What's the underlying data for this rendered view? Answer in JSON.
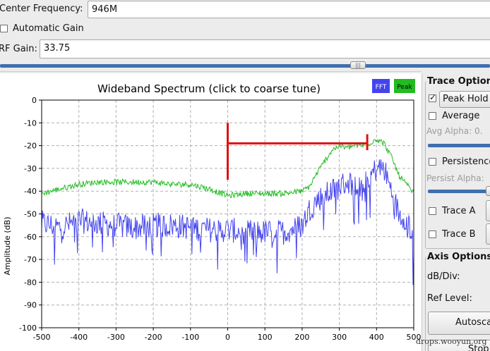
{
  "controls": {
    "center_frequency": {
      "label": "Center Frequency:",
      "value": "946M"
    },
    "automatic_gain": {
      "label": "Automatic Gain",
      "checked": false
    },
    "rf_gain": {
      "label": "RF Gain:",
      "value": "33.75"
    },
    "gain_slider_value": 0.73
  },
  "chart_data": {
    "type": "line",
    "title": "Wideband Spectrum (click to coarse tune)",
    "ylabel": "Amplitude (dB)",
    "xlabel": "",
    "xlim": [
      -500,
      500
    ],
    "ylim": [
      -100,
      0
    ],
    "xticks": [
      -500,
      -400,
      -300,
      -200,
      -100,
      0,
      100,
      200,
      300,
      400,
      500
    ],
    "yticks": [
      0,
      -10,
      -20,
      -30,
      -40,
      -50,
      -60,
      -70,
      -80,
      -90,
      -100
    ],
    "grid": true,
    "legend_position": "top-right",
    "series": [
      {
        "name": "FFT",
        "color": "#4444ee",
        "noise": 7,
        "x": [
          -500,
          -450,
          -400,
          -350,
          -300,
          -250,
          -200,
          -150,
          -100,
          -50,
          0,
          50,
          100,
          150,
          200,
          220,
          240,
          260,
          280,
          300,
          320,
          340,
          360,
          380,
          400,
          420,
          440,
          460,
          480,
          500
        ],
        "y": [
          -54,
          -56,
          -53,
          -54,
          -55,
          -56,
          -55,
          -55,
          -56,
          -57,
          -57,
          -58,
          -58,
          -58,
          -55,
          -48,
          -44,
          -42,
          -40,
          -38,
          -36,
          -37,
          -36,
          -34,
          -30,
          -30,
          -40,
          -50,
          -52,
          -60
        ]
      },
      {
        "name": "Peak",
        "color": "#22bb22",
        "noise": 1.3,
        "x": [
          -500,
          -450,
          -400,
          -350,
          -300,
          -250,
          -200,
          -150,
          -100,
          -50,
          0,
          50,
          100,
          150,
          200,
          220,
          240,
          260,
          280,
          300,
          320,
          340,
          360,
          380,
          400,
          420,
          440,
          460,
          480,
          500
        ],
        "y": [
          -41,
          -39,
          -37,
          -36,
          -36,
          -36,
          -36,
          -37,
          -37,
          -39,
          -42,
          -41,
          -41,
          -41,
          -40,
          -38,
          -32,
          -27,
          -22,
          -20,
          -21,
          -20,
          -20,
          -19,
          -17,
          -19,
          -25,
          -33,
          -37,
          -41
        ]
      }
    ],
    "annotations": [
      {
        "type": "marker",
        "color": "#dd1111",
        "x_start": 0,
        "x_end": 375,
        "y": -19,
        "left_bar": [
          -10,
          -35
        ],
        "right_bar": [
          -15,
          -22
        ]
      }
    ],
    "legend": {
      "fft": "FFT",
      "peak": "Peak"
    }
  },
  "trace_options": {
    "title": "Trace Options",
    "peak_hold": {
      "label": "Peak Hold",
      "checked": true
    },
    "average": {
      "label": "Average",
      "checked": false
    },
    "avg_alpha_label": "Avg Alpha: 0.",
    "persistence": {
      "label": "Persistence",
      "checked": false
    },
    "persist_alpha_label": "Persist Alpha:",
    "trace_a": {
      "label": "Trace A",
      "checked": false
    },
    "trace_b": {
      "label": "Trace B",
      "checked": false
    }
  },
  "axis_options": {
    "title": "Axis Options",
    "db_div_label": "dB/Div:",
    "ref_level_label": "Ref Level:",
    "autoscale_label": "Autosca",
    "stop_label": "Stop"
  },
  "watermark": "drops.wooyun.org"
}
